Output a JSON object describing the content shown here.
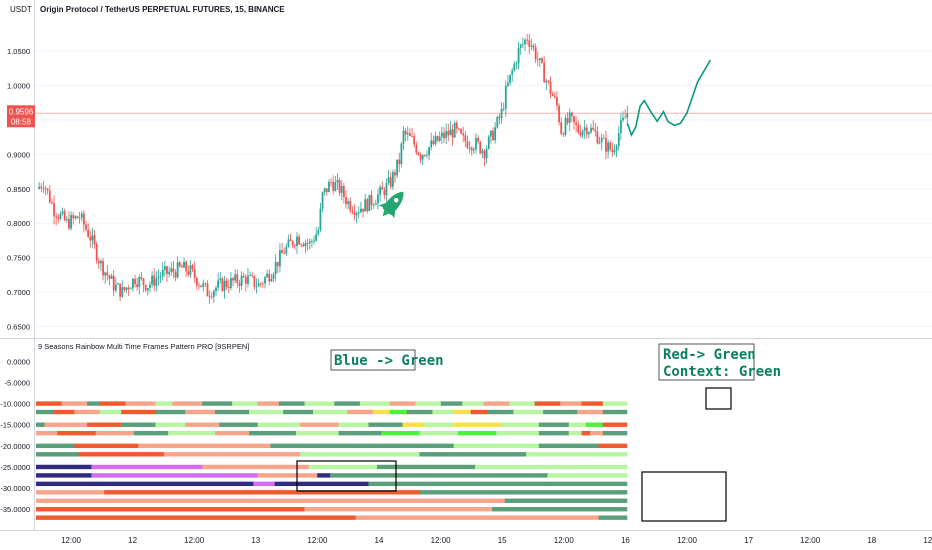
{
  "header": {
    "currency": "USDT",
    "title": "Origin Protocol / TetherUS PERPETUAL FUTURES, 15, BINANCE"
  },
  "price_badge": {
    "price": "0.9596",
    "countdown": "08:58"
  },
  "indicator": {
    "title": "9 Seasons Rainbow Multi Time Frames Pattern PRO [9SRPEN]"
  },
  "annotations": {
    "blue_green": "Blue -> Green",
    "red_green_1": "Red-> Green",
    "red_green_2": "Context: Green"
  },
  "colors": {
    "up": "#26a69a",
    "down": "#ef5350",
    "curve": "#089981",
    "light_green": "#b7f5a0",
    "green": "#5a9e7b",
    "red": "#f05a2e",
    "salmon": "#f7a58a",
    "yellow": "#f7e04a",
    "lime": "#4cf23a",
    "navy": "#2e2b80",
    "violet": "#d66cf0",
    "grey": "#c7cbd3"
  },
  "chart_data": [
    {
      "type": "candlestick",
      "title": "Origin Protocol / TetherUS PERPETUAL FUTURES, 15, BINANCE",
      "ylim": [
        0.645,
        1.095
      ],
      "y_ticks": [
        "1.0500",
        "1.0000",
        "0.9500",
        "0.9000",
        "0.8500",
        "0.8000",
        "0.7500",
        "0.7000",
        "0.6500"
      ],
      "x_ticks": [
        "12:00",
        "12",
        "12:00",
        "13",
        "12:00",
        "14",
        "12:00",
        "15",
        "12:00",
        "16",
        "12:00",
        "17",
        "12:00",
        "18",
        "12:00"
      ],
      "last_price": 0.9596,
      "price_path": [
        [
          0,
          0.85
        ],
        [
          3,
          0.86
        ],
        [
          8,
          0.82
        ],
        [
          14,
          0.8
        ],
        [
          20,
          0.81
        ],
        [
          25,
          0.78
        ],
        [
          30,
          0.74
        ],
        [
          36,
          0.71
        ],
        [
          40,
          0.7
        ],
        [
          46,
          0.72
        ],
        [
          52,
          0.71
        ],
        [
          58,
          0.725
        ],
        [
          64,
          0.73
        ],
        [
          68,
          0.735
        ],
        [
          72,
          0.73
        ],
        [
          76,
          0.715
        ],
        [
          80,
          0.7
        ],
        [
          86,
          0.71
        ],
        [
          92,
          0.715
        ],
        [
          98,
          0.72
        ],
        [
          104,
          0.71
        ],
        [
          110,
          0.73
        ],
        [
          116,
          0.76
        ],
        [
          122,
          0.78
        ],
        [
          128,
          0.77
        ],
        [
          132,
          0.79
        ],
        [
          134,
          0.84
        ],
        [
          138,
          0.86
        ],
        [
          142,
          0.85
        ],
        [
          146,
          0.83
        ],
        [
          150,
          0.82
        ],
        [
          156,
          0.83
        ],
        [
          162,
          0.845
        ],
        [
          166,
          0.86
        ],
        [
          170,
          0.89
        ],
        [
          172,
          0.93
        ],
        [
          176,
          0.92
        ],
        [
          180,
          0.9
        ],
        [
          186,
          0.915
        ],
        [
          190,
          0.925
        ],
        [
          196,
          0.935
        ],
        [
          200,
          0.92
        ],
        [
          206,
          0.915
        ],
        [
          210,
          0.905
        ],
        [
          214,
          0.93
        ],
        [
          218,
          0.96
        ],
        [
          220,
          0.99
        ],
        [
          222,
          1.01
        ],
        [
          226,
          1.05
        ],
        [
          230,
          1.07
        ],
        [
          232,
          1.06
        ],
        [
          236,
          1.03
        ],
        [
          240,
          1.0
        ],
        [
          244,
          0.97
        ],
        [
          246,
          0.935
        ],
        [
          250,
          0.95
        ],
        [
          254,
          0.935
        ],
        [
          258,
          0.94
        ],
        [
          262,
          0.93
        ],
        [
          266,
          0.915
        ],
        [
          270,
          0.905
        ],
        [
          274,
          0.94
        ],
        [
          277,
          0.9596
        ]
      ],
      "projection_curve": [
        [
          277,
          0.945
        ],
        [
          279,
          0.928
        ],
        [
          281,
          0.94
        ],
        [
          283,
          0.97
        ],
        [
          285,
          0.978
        ],
        [
          288,
          0.962
        ],
        [
          291,
          0.948
        ],
        [
          294,
          0.962
        ],
        [
          296,
          0.948
        ],
        [
          299,
          0.942
        ],
        [
          302,
          0.945
        ],
        [
          305,
          0.96
        ],
        [
          310,
          1.005
        ],
        [
          316,
          1.037
        ]
      ]
    },
    {
      "type": "heatmap",
      "title": "9 Seasons Rainbow Multi Time Frames Pattern PRO [9SRPEN]",
      "ylim": [
        -38.5,
        1.5
      ],
      "y_ticks": [
        "0.0000",
        "-5.0000",
        "-10.0000",
        "-15.0000",
        "-20.0000",
        "-25.0000",
        "-30.0000",
        "-35.0000"
      ],
      "x_range": [
        0,
        277
      ],
      "rows": [
        {
          "level": -10,
          "segments": [
            [
              0,
              12,
              "red"
            ],
            [
              12,
              24,
              "salmon"
            ],
            [
              24,
              30,
              "green"
            ],
            [
              30,
              42,
              "red"
            ],
            [
              42,
              56,
              "salmon"
            ],
            [
              56,
              64,
              "light_green"
            ],
            [
              64,
              78,
              "salmon"
            ],
            [
              78,
              92,
              "green"
            ],
            [
              92,
              104,
              "light_green"
            ],
            [
              104,
              114,
              "salmon"
            ],
            [
              114,
              126,
              "green"
            ],
            [
              126,
              140,
              "light_green"
            ],
            [
              140,
              152,
              "green"
            ],
            [
              152,
              166,
              "light_green"
            ],
            [
              166,
              178,
              "salmon"
            ],
            [
              178,
              190,
              "light_green"
            ],
            [
              190,
              200,
              "green"
            ],
            [
              200,
              210,
              "light_green"
            ],
            [
              210,
              222,
              "salmon"
            ],
            [
              222,
              234,
              "light_green"
            ],
            [
              234,
              246,
              "red"
            ],
            [
              246,
              256,
              "salmon"
            ],
            [
              256,
              266,
              "red"
            ],
            [
              266,
              277,
              "light_green"
            ]
          ]
        },
        {
          "level": -12,
          "segments": [
            [
              0,
              8,
              "green"
            ],
            [
              8,
              18,
              "red"
            ],
            [
              18,
              30,
              "salmon"
            ],
            [
              30,
              40,
              "light_green"
            ],
            [
              40,
              56,
              "red"
            ],
            [
              56,
              70,
              "green"
            ],
            [
              70,
              84,
              "salmon"
            ],
            [
              84,
              100,
              "green"
            ],
            [
              100,
              116,
              "light_green"
            ],
            [
              116,
              130,
              "green"
            ],
            [
              130,
              146,
              "light_green"
            ],
            [
              146,
              158,
              "salmon"
            ],
            [
              158,
              166,
              "yellow"
            ],
            [
              166,
              174,
              "lime"
            ],
            [
              174,
              186,
              "green"
            ],
            [
              186,
              196,
              "light_green"
            ],
            [
              196,
              204,
              "yellow"
            ],
            [
              204,
              212,
              "red"
            ],
            [
              212,
              224,
              "green"
            ],
            [
              224,
              238,
              "light_green"
            ],
            [
              238,
              254,
              "green"
            ],
            [
              254,
              266,
              "salmon"
            ],
            [
              266,
              277,
              "green"
            ]
          ]
        },
        {
          "level": -15,
          "segments": [
            [
              0,
              4,
              "green"
            ],
            [
              4,
              24,
              "salmon"
            ],
            [
              24,
              40,
              "red"
            ],
            [
              40,
              56,
              "green"
            ],
            [
              56,
              70,
              "light_green"
            ],
            [
              70,
              86,
              "salmon"
            ],
            [
              86,
              104,
              "green"
            ],
            [
              104,
              124,
              "light_green"
            ],
            [
              124,
              142,
              "salmon"
            ],
            [
              142,
              156,
              "light_green"
            ],
            [
              156,
              172,
              "green"
            ],
            [
              172,
              182,
              "yellow"
            ],
            [
              182,
              196,
              "light_green"
            ],
            [
              196,
              218,
              "yellow"
            ],
            [
              218,
              236,
              "light_green"
            ],
            [
              236,
              250,
              "green"
            ],
            [
              250,
              258,
              "light_green"
            ],
            [
              258,
              266,
              "lime"
            ],
            [
              266,
              277,
              "red"
            ]
          ]
        },
        {
          "level": -17,
          "segments": [
            [
              0,
              10,
              "salmon"
            ],
            [
              10,
              28,
              "red"
            ],
            [
              28,
              46,
              "salmon"
            ],
            [
              46,
              62,
              "green"
            ],
            [
              62,
              84,
              "light_green"
            ],
            [
              84,
              100,
              "salmon"
            ],
            [
              100,
              122,
              "green"
            ],
            [
              122,
              142,
              "light_green"
            ],
            [
              142,
              162,
              "green"
            ],
            [
              162,
              180,
              "lime"
            ],
            [
              180,
              198,
              "light_green"
            ],
            [
              198,
              216,
              "lime"
            ],
            [
              216,
              236,
              "light_green"
            ],
            [
              236,
              250,
              "green"
            ],
            [
              250,
              256,
              "light_green"
            ],
            [
              256,
              260,
              "red"
            ],
            [
              260,
              266,
              "salmon"
            ],
            [
              266,
              277,
              "green"
            ]
          ]
        },
        {
          "level": -20,
          "segments": [
            [
              0,
              18,
              "green"
            ],
            [
              18,
              48,
              "red"
            ],
            [
              48,
              110,
              "salmon"
            ],
            [
              110,
              196,
              "green"
            ],
            [
              196,
              236,
              "light_green"
            ],
            [
              236,
              264,
              "green"
            ],
            [
              264,
              277,
              "red"
            ]
          ]
        },
        {
          "level": -22,
          "segments": [
            [
              0,
              20,
              "green"
            ],
            [
              20,
              60,
              "red"
            ],
            [
              60,
              124,
              "salmon"
            ],
            [
              124,
              180,
              "light_green"
            ],
            [
              180,
              230,
              "green"
            ],
            [
              230,
              277,
              "light_green"
            ]
          ]
        },
        {
          "level": -25,
          "segments": [
            [
              0,
              26,
              "navy"
            ],
            [
              26,
              78,
              "violet"
            ],
            [
              78,
              128,
              "salmon"
            ],
            [
              128,
              160,
              "light_green"
            ],
            [
              160,
              206,
              "green"
            ],
            [
              206,
              238,
              "light_green"
            ],
            [
              238,
              277,
              "light_green"
            ]
          ]
        },
        {
          "level": -27,
          "segments": [
            [
              0,
              26,
              "navy"
            ],
            [
              26,
              104,
              "violet"
            ],
            [
              104,
              132,
              "salmon"
            ],
            [
              132,
              138,
              "navy"
            ],
            [
              138,
              240,
              "green"
            ],
            [
              240,
              277,
              "light_green"
            ]
          ]
        },
        {
          "level": -29,
          "segments": [
            [
              0,
              102,
              "navy"
            ],
            [
              102,
              112,
              "violet"
            ],
            [
              112,
              156,
              "navy"
            ],
            [
              156,
              240,
              "green"
            ],
            [
              240,
              277,
              "green"
            ]
          ]
        },
        {
          "level": -31,
          "segments": [
            [
              0,
              32,
              "salmon"
            ],
            [
              32,
              180,
              "red"
            ],
            [
              180,
              277,
              "green"
            ]
          ]
        },
        {
          "level": -33,
          "segments": [
            [
              0,
              70,
              "salmon"
            ],
            [
              70,
              220,
              "salmon"
            ],
            [
              220,
              277,
              "green"
            ]
          ]
        },
        {
          "level": -35,
          "segments": [
            [
              0,
              126,
              "red"
            ],
            [
              126,
              214,
              "salmon"
            ],
            [
              214,
              277,
              "green"
            ]
          ]
        },
        {
          "level": -37,
          "segments": [
            [
              0,
              150,
              "red"
            ],
            [
              150,
              264,
              "salmon"
            ],
            [
              264,
              277,
              "green"
            ]
          ]
        }
      ]
    }
  ]
}
